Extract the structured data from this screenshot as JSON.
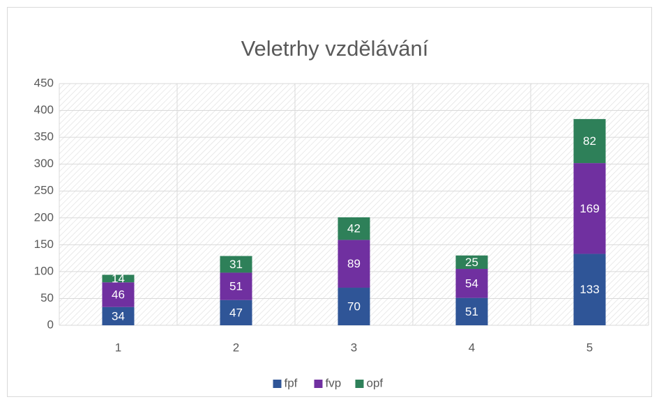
{
  "chart_data": {
    "type": "stacked_bar",
    "title": "Veletrhy vzdělávání",
    "categories": [
      "1",
      "2",
      "3",
      "4",
      "5"
    ],
    "series": [
      {
        "name": "fpf",
        "color": "#2f5597",
        "values": [
          34,
          47,
          70,
          51,
          133
        ]
      },
      {
        "name": "fvp",
        "color": "#7030a0",
        "values": [
          46,
          51,
          89,
          54,
          169
        ]
      },
      {
        "name": "opf",
        "color": "#2e8059",
        "values": [
          14,
          31,
          42,
          25,
          82
        ]
      }
    ],
    "ylim": [
      0,
      450
    ],
    "yticks": [
      0,
      50,
      100,
      150,
      200,
      250,
      300,
      350,
      400,
      450
    ],
    "grid": true,
    "legend": "bottom"
  }
}
